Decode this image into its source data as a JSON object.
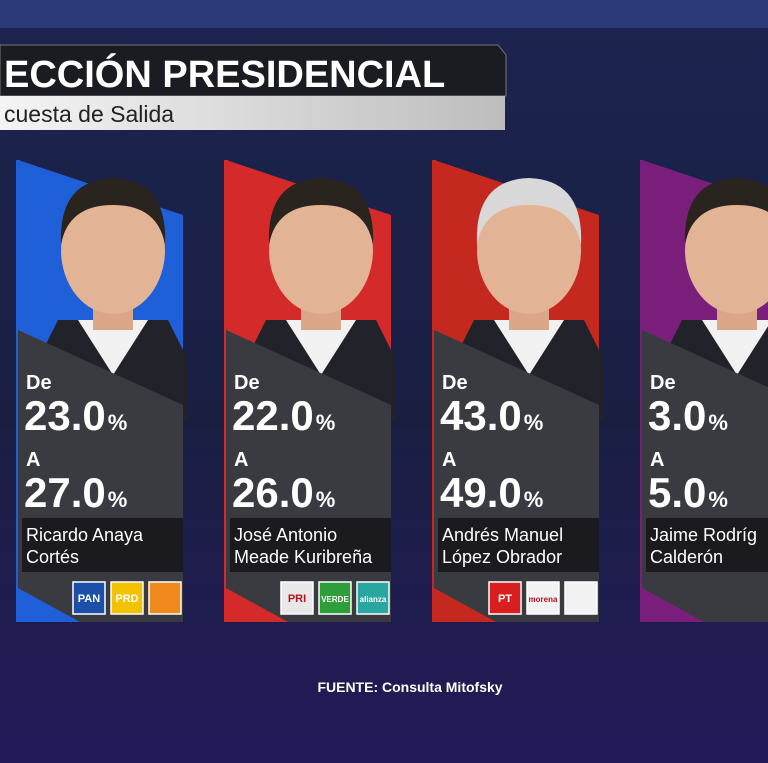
{
  "header": {
    "title": "ECCIÓN PRESIDENCIAL",
    "subtitle": "cuesta de Salida"
  },
  "candidates": [
    {
      "color": "#1f5fd8",
      "from_label": "De",
      "from": "23.0",
      "from_unit": "%",
      "to_label": "A",
      "to": "27.0",
      "to_unit": "%",
      "name_lines": [
        "Ricardo Anaya",
        "Cortés"
      ],
      "logos": [
        {
          "label": "PAN",
          "color": "#1b4fa8"
        },
        {
          "label": "PRD",
          "color": "#f2c200"
        },
        {
          "label": null,
          "color": "#f08a1c"
        }
      ]
    },
    {
      "color": "#d42a2a",
      "from_label": "De",
      "from": "22.0",
      "from_unit": "%",
      "to_label": "A",
      "to": "26.0",
      "to_unit": "%",
      "name_lines": [
        "José Antonio",
        "Meade Kuribreña"
      ],
      "logos": [
        {
          "label": "PRI",
          "color": "#e8e8e8"
        },
        {
          "label": "VERDE",
          "color": "#2e9e3a"
        },
        {
          "label": "alianza",
          "color": "#2aa6a0"
        }
      ]
    },
    {
      "color": "#c4281f",
      "from_label": "De",
      "from": "43.0",
      "from_unit": "%",
      "to_label": "A",
      "to": "49.0",
      "to_unit": "%",
      "name_lines": [
        "Andrés Manuel",
        "López Obrador"
      ],
      "logos": [
        {
          "label": "PT",
          "color": "#d81e1e"
        },
        {
          "label": "morena",
          "color": "#f2f2f2"
        },
        {
          "label": null,
          "color": "#f2f2f2"
        }
      ]
    },
    {
      "color": "#7b1f7d",
      "from_label": "De",
      "from": "3.0",
      "from_unit": "%",
      "to_label": "A",
      "to": "5.0",
      "to_unit": "%",
      "name_lines": [
        "Jaime Rodríg",
        "Calderón"
      ],
      "logos": []
    }
  ],
  "footer": {
    "source": "FUENTE: Consulta Mitofsky"
  }
}
